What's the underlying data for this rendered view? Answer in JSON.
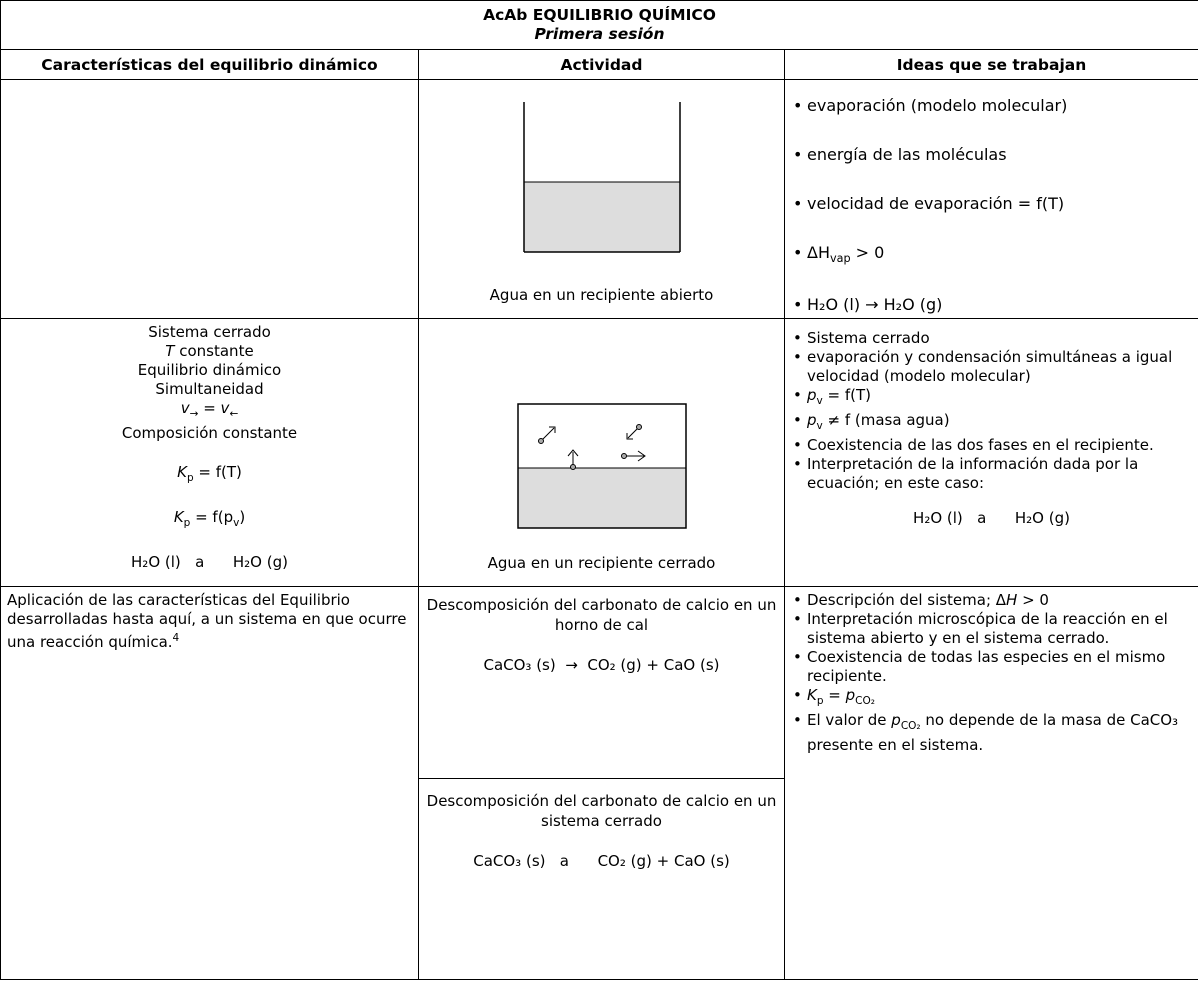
{
  "header": {
    "title": "AcAb EQUILIBRIO QUÍMICO",
    "subtitle": "Primera sesión"
  },
  "columns": [
    "Características del equilibrio dinámico",
    "Actividad",
    "Ideas que se trabajan"
  ],
  "rows": [
    {
      "activity": "Agua en un recipiente abierto",
      "ideas": [
        "evaporación (modelo molecular)",
        "energía de las moléculas",
        "velocidad de evaporación =  f(T)",
        [
          "ΔH",
          "vap",
          " > 0"
        ],
        "H₂O (l) → H₂O (g)"
      ]
    },
    {
      "characteristics": [
        "Sistema cerrado",
        [
          "T",
          " constante"
        ],
        "Equilibrio dinámico",
        "Simultaneidad",
        [
          "v",
          "→",
          " = ",
          "v",
          "←"
        ],
        "Composición constante",
        [
          "K",
          "p",
          " = f(T)"
        ],
        [
          "K",
          "p",
          " = f(p",
          "v",
          ")"
        ],
        "H₂O (l)   a      H₂O (g)"
      ],
      "activity": "Agua en un recipiente cerrado",
      "ideas": [
        "Sistema cerrado",
        "evaporación y condensación simultáneas a igual velocidad (modelo molecular)",
        [
          "p",
          "v",
          " = f(T)"
        ],
        [
          "p",
          "v",
          " ≠  f (masa agua)"
        ],
        "Coexistencia de las dos fases en el recipiente.",
        "Interpretación de la información dada por la ecuación; en este caso:"
      ],
      "equation": "H₂O (l)   a      H₂O (g)"
    },
    {
      "characteristics": [
        "Aplicación de las características del Equilibrio desarrolladas hasta aquí, a un sistema en que ocurre una reacción química.",
        "4"
      ],
      "activities": [
        {
          "text": "Descomposición del carbonato de calcio en un horno de cal",
          "equation": "CaCO₃ (s)  →  CO₂ (g) + CaO (s)"
        },
        {
          "text": "Descomposición del carbonato de calcio en un sistema cerrado",
          "equation": "CaCO₃ (s)   a      CO₂ (g) + CaO (s)"
        }
      ],
      "ideas": [
        [
          "Descripción del sistema; Δ",
          "H",
          " > 0"
        ],
        "Interpretación microscópica de la reacción en el sistema abierto y en el sistema cerrado.",
        "Coexistencia de todas las especies en el mismo recipiente.",
        [
          "K",
          "p",
          " = ",
          "p",
          "CO₂"
        ],
        [
          "El valor de ",
          "p",
          "CO₂",
          " no depende de la masa de CaCO₃ presente en el sistema."
        ]
      ]
    }
  ]
}
